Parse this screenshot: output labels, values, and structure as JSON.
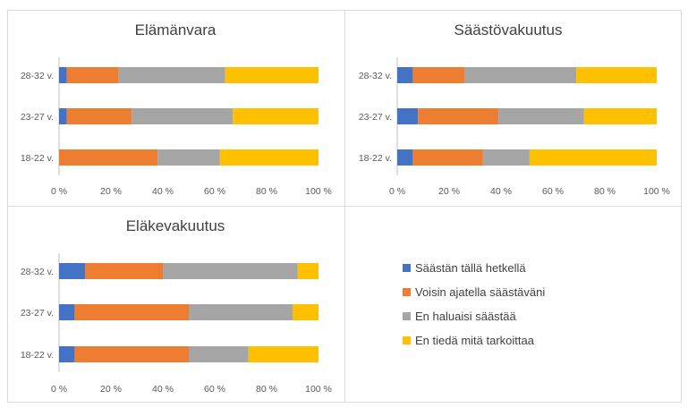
{
  "colors": [
    "#4472C4",
    "#ED7D31",
    "#A5A5A5",
    "#FFC000"
  ],
  "legend": {
    "items": [
      "Säästän tällä hetkellä",
      "Voisin ajatella säästäväni",
      "En haluaisi säästää",
      "En tiedä mitä tarkoittaa"
    ]
  },
  "chart_data": [
    {
      "type": "bar",
      "orientation": "horizontal",
      "stacked": "percent",
      "title": "Elämänvara",
      "categories": [
        "28-32 v.",
        "23-27 v.",
        "18-22 v."
      ],
      "xlim": [
        0,
        100
      ],
      "xticks": [
        "0 %",
        "20 %",
        "40 %",
        "60 %",
        "80 %",
        "100 %"
      ],
      "series": [
        {
          "name": "Säästän tällä hetkellä",
          "values": [
            3,
            3,
            0
          ]
        },
        {
          "name": "Voisin ajatella säästäväni",
          "values": [
            20,
            25,
            38
          ]
        },
        {
          "name": "En haluaisi säästää",
          "values": [
            41,
            39,
            24
          ]
        },
        {
          "name": "En tiedä mitä tarkoittaa",
          "values": [
            36,
            33,
            38
          ]
        }
      ]
    },
    {
      "type": "bar",
      "orientation": "horizontal",
      "stacked": "percent",
      "title": "Säästövakuutus",
      "categories": [
        "28-32 v.",
        "23-27 v.",
        "18-22 v."
      ],
      "xlim": [
        0,
        100
      ],
      "xticks": [
        "0 %",
        "20 %",
        "40 %",
        "60 %",
        "80 %",
        "100 %"
      ],
      "series": [
        {
          "name": "Säästän tällä hetkellä",
          "values": [
            6,
            8,
            6
          ]
        },
        {
          "name": "Voisin ajatella säästäväni",
          "values": [
            20,
            31,
            27
          ]
        },
        {
          "name": "En haluaisi säästää",
          "values": [
            43,
            33,
            18
          ]
        },
        {
          "name": "En tiedä mitä tarkoittaa",
          "values": [
            31,
            28,
            49
          ]
        }
      ]
    },
    {
      "type": "bar",
      "orientation": "horizontal",
      "stacked": "percent",
      "title": "Eläkevakuutus",
      "categories": [
        "28-32 v.",
        "23-27 v.",
        "18-22 v."
      ],
      "xlim": [
        0,
        100
      ],
      "xticks": [
        "0 %",
        "20 %",
        "40 %",
        "60 %",
        "80 %",
        "100 %"
      ],
      "series": [
        {
          "name": "Säästän tällä hetkellä",
          "values": [
            10,
            6,
            6
          ]
        },
        {
          "name": "Voisin ajatella säästäväni",
          "values": [
            30,
            44,
            44
          ]
        },
        {
          "name": "En haluaisi säästää",
          "values": [
            52,
            40,
            23
          ]
        },
        {
          "name": "En tiedä mitä tarkoittaa",
          "values": [
            8,
            10,
            27
          ]
        }
      ]
    }
  ]
}
